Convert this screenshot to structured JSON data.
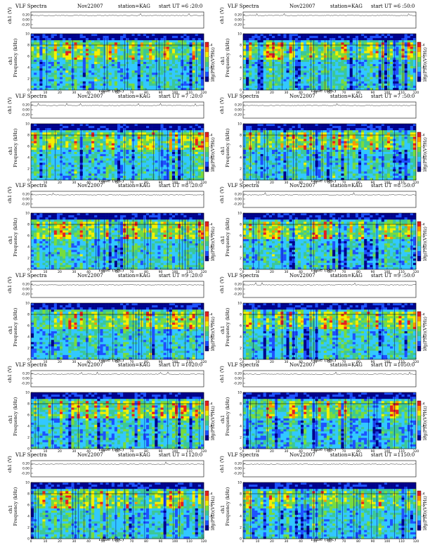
{
  "figure": {
    "title": "VLF Spectra",
    "date": "Nov22007",
    "station_text": "station=KAG",
    "xlabel": "Time  (sec)",
    "ylabel_top": "ch1 (V)",
    "ylabel_bottom": "Frequency  (kHz)",
    "channel_label": "ch1",
    "colorbar_label": "log(PSD)(V²/Hz)"
  },
  "chart_data": [
    {
      "type": "heatmap",
      "header_ut": "start  UT  =6 :20:0",
      "xlim": [
        0,
        120
      ],
      "ylim_freq": [
        0,
        10
      ],
      "top_ticks": [
        "0.20",
        "0.00",
        "-0.20"
      ]
    },
    {
      "type": "heatmap",
      "header_ut": "start  UT  =6 :50:0",
      "xlim": [
        0,
        120
      ],
      "ylim_freq": [
        0,
        10
      ],
      "top_ticks": [
        "0.20",
        "0.00",
        "-0.20"
      ]
    },
    {
      "type": "heatmap",
      "header_ut": "start  UT  =7 :20:0",
      "xlim": [
        0,
        120
      ],
      "ylim_freq": [
        0,
        10
      ],
      "top_ticks": [
        "0.20",
        "0.00",
        "-0.20"
      ]
    },
    {
      "type": "heatmap",
      "header_ut": "start  UT  =7 :50:0",
      "xlim": [
        0,
        120
      ],
      "ylim_freq": [
        0,
        10
      ],
      "top_ticks": [
        "0.20",
        "0.00",
        "-0.20"
      ]
    },
    {
      "type": "heatmap",
      "header_ut": "start  UT  =8 :20:0",
      "xlim": [
        0,
        120
      ],
      "ylim_freq": [
        0,
        10
      ],
      "top_ticks": [
        "0.20",
        "0.00",
        "-0.20"
      ]
    },
    {
      "type": "heatmap",
      "header_ut": "start  UT  =8 :50:0",
      "xlim": [
        0,
        120
      ],
      "ylim_freq": [
        0,
        10
      ],
      "top_ticks": [
        "0.20",
        "0.00",
        "-0.20"
      ]
    },
    {
      "type": "heatmap",
      "header_ut": "start  UT  =9 :20:0",
      "xlim": [
        0,
        120
      ],
      "ylim_freq": [
        0,
        10
      ],
      "top_ticks": [
        "0.20",
        "0.00",
        "-0.20"
      ]
    },
    {
      "type": "heatmap",
      "header_ut": "start  UT  =9 :50:0",
      "xlim": [
        0,
        120
      ],
      "ylim_freq": [
        0,
        10
      ],
      "top_ticks": [
        "0.20",
        "0.00",
        "-0.20"
      ]
    },
    {
      "type": "heatmap",
      "header_ut": "start  UT  =1020:0",
      "xlim": [
        0,
        120
      ],
      "ylim_freq": [
        0,
        10
      ],
      "top_ticks": [
        "0.20",
        "0.00",
        "-0.20"
      ]
    },
    {
      "type": "heatmap",
      "header_ut": "start  UT  =1050:0",
      "xlim": [
        0,
        120
      ],
      "ylim_freq": [
        0,
        10
      ],
      "top_ticks": [
        "0.20",
        "0.00",
        "-0.20"
      ]
    },
    {
      "type": "heatmap",
      "header_ut": "start  UT  =1120:0",
      "xlim": [
        0,
        120
      ],
      "ylim_freq": [
        0,
        10
      ],
      "top_ticks": [
        "0.20",
        "0.00",
        "-0.20"
      ]
    },
    {
      "type": "heatmap",
      "header_ut": "start  UT  =1150:0",
      "xlim": [
        0,
        120
      ],
      "ylim_freq": [
        0,
        10
      ],
      "top_ticks": [
        "0.20",
        "0.00",
        "-0.20"
      ]
    }
  ],
  "axis": {
    "x_ticks": [
      "0",
      "10",
      "20",
      "30",
      "40",
      "50",
      "60",
      "70",
      "80",
      "90",
      "100",
      "110",
      "120"
    ],
    "y_ticks": [
      "0",
      "2",
      "4",
      "6",
      "8",
      "10"
    ],
    "colorbar_ticks": [
      "-4",
      "-5",
      "-6",
      "-7"
    ]
  },
  "colors": {
    "dark_blue": "#00008b",
    "blue": "#1e50ff",
    "cyan": "#32c8ff",
    "teal": "#3cc896",
    "green": "#78dc3c",
    "yellow": "#f5f000",
    "orange": "#ff9600",
    "red": "#e61e1e",
    "black": "#000000"
  }
}
